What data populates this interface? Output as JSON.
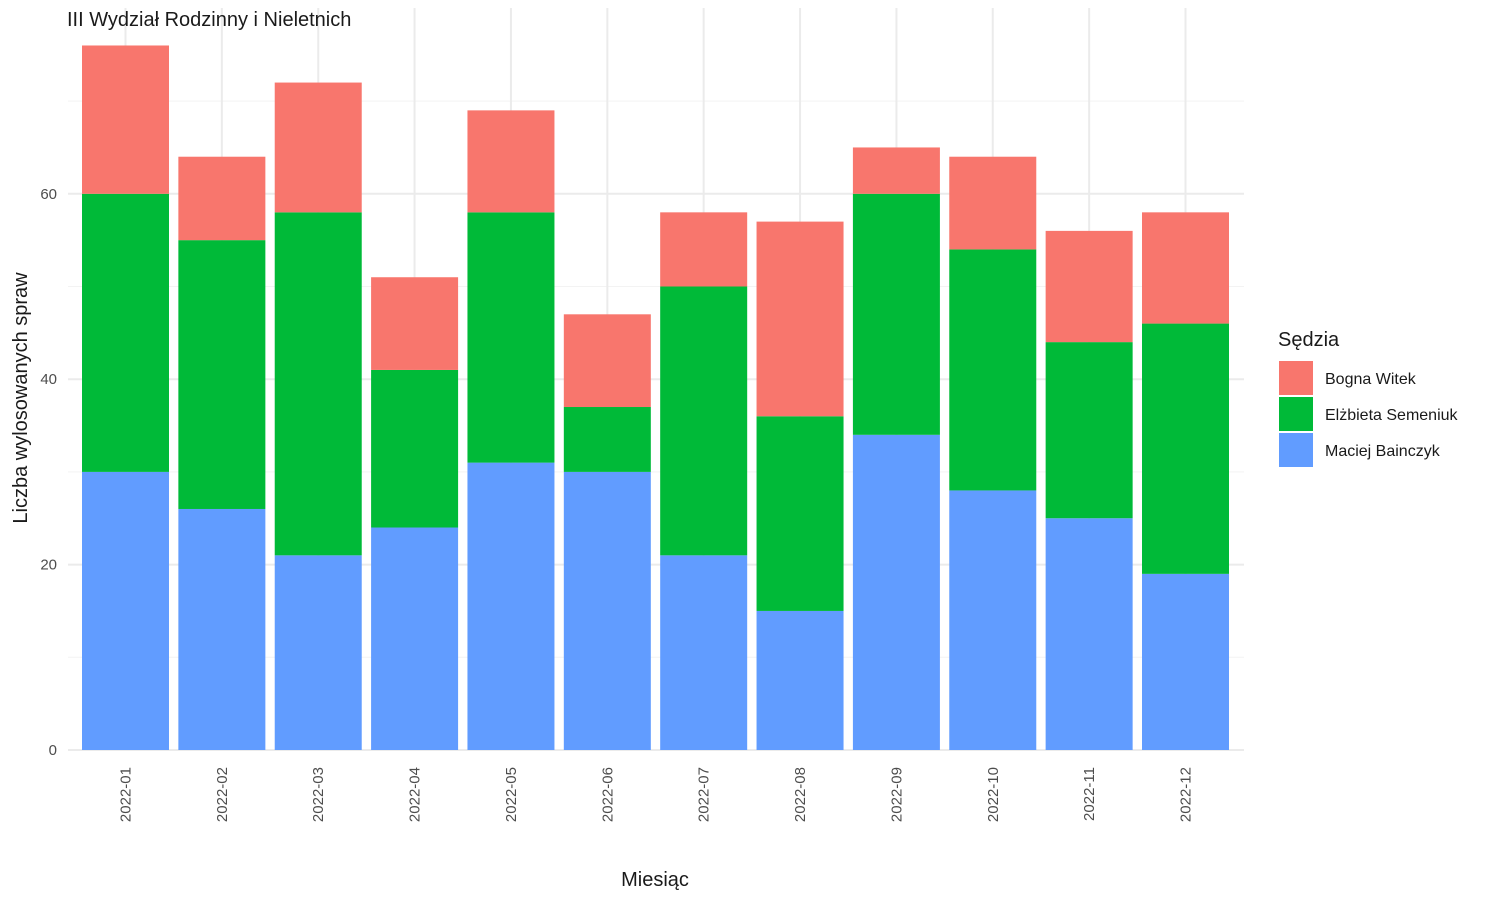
{
  "chart_data": {
    "type": "bar",
    "stacked": true,
    "title": "III Wydział Rodzinny i Nieletnich",
    "xlabel": "Miesiąc",
    "ylabel": "Liczba wylosowanych spraw",
    "ylim": [
      0,
      80
    ],
    "yticks": [
      0,
      20,
      40,
      60
    ],
    "grid": true,
    "legend_position": "right",
    "legend_title": "Sędzia",
    "categories": [
      "2022-01",
      "2022-02",
      "2022-03",
      "2022-04",
      "2022-05",
      "2022-06",
      "2022-07",
      "2022-08",
      "2022-09",
      "2022-10",
      "2022-11",
      "2022-12"
    ],
    "series": [
      {
        "name": "Maciej Bainczyk",
        "color": "#619CFF",
        "values": [
          30,
          26,
          21,
          24,
          31,
          30,
          21,
          15,
          34,
          28,
          25,
          19
        ]
      },
      {
        "name": "Elżbieta Semeniuk",
        "color": "#00BA38",
        "values": [
          30,
          29,
          37,
          17,
          27,
          7,
          29,
          21,
          26,
          26,
          19,
          27
        ]
      },
      {
        "name": "Bogna Witek",
        "color": "#F8766D",
        "values": [
          16,
          9,
          14,
          10,
          11,
          10,
          8,
          21,
          5,
          10,
          12,
          12
        ]
      }
    ],
    "legend_order": [
      "Bogna Witek",
      "Elżbieta Semeniuk",
      "Maciej Bainczyk"
    ]
  }
}
